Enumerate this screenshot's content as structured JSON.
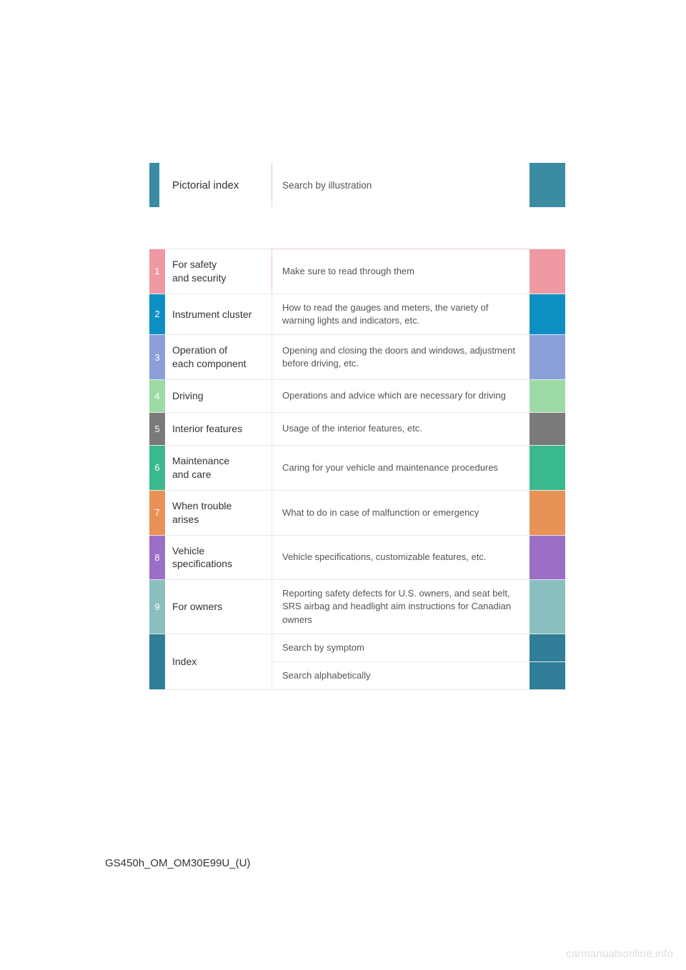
{
  "colors": {
    "pictorial_bar": "#3b8ba3",
    "pictorial_right": "#3b8ba3",
    "divider": "#e8e8e8",
    "text_title": "#333333",
    "text_desc": "#555555"
  },
  "pictorial": {
    "label": "Pictorial index",
    "description": "Search by illustration",
    "left_bar_color": "#3b8ba3",
    "right_box_color": "#3b8ba3"
  },
  "sections": [
    {
      "num": "1",
      "title": "For safety\nand security",
      "description": "Make sure to read through them",
      "num_bg": "#ef9aa3",
      "right_bg": "#ef9aa3",
      "desc_border": "#f5c0c6",
      "min_height": 54
    },
    {
      "num": "2",
      "title": "Instrument cluster",
      "description": "How to read the gauges and meters, the variety of warning lights and indicators, etc.",
      "num_bg": "#0d8fc4",
      "right_bg": "#0d8fc4",
      "desc_border": "#e8e8e8",
      "min_height": 50
    },
    {
      "num": "3",
      "title": "Operation of\neach component",
      "description": "Opening and closing the doors and windows, adjustment before driving, etc.",
      "num_bg": "#8ba0d8",
      "right_bg": "#8ba0d8",
      "desc_border": "#e8e8e8",
      "min_height": 54
    },
    {
      "num": "4",
      "title": "Driving",
      "description": "Operations and advice which are necessary for driving",
      "num_bg": "#9edaa5",
      "right_bg": "#9edaa5",
      "desc_border": "#e8e8e8",
      "min_height": 46
    },
    {
      "num": "5",
      "title": "Interior features",
      "description": "Usage of the interior features, etc.",
      "num_bg": "#7a7a7a",
      "right_bg": "#7a7a7a",
      "desc_border": "#e8e8e8",
      "min_height": 46
    },
    {
      "num": "6",
      "title": "Maintenance\nand care",
      "description": "Caring for your vehicle and maintenance procedures",
      "num_bg": "#3ab88f",
      "right_bg": "#3ab88f",
      "desc_border": "#e8e8e8",
      "min_height": 54
    },
    {
      "num": "7",
      "title": "When trouble\narises",
      "description": "What to do in case of malfunction or emergency",
      "num_bg": "#e89258",
      "right_bg": "#e89258",
      "desc_border": "#e8e8e8",
      "min_height": 54
    },
    {
      "num": "8",
      "title": "Vehicle\nspecifications",
      "description": "Vehicle specifications, customizable features, etc.",
      "num_bg": "#9b6fc5",
      "right_bg": "#9b6fc5",
      "desc_border": "#e8e8e8",
      "min_height": 54
    },
    {
      "num": "9",
      "title": "For owners",
      "description": "Reporting safety defects for U.S. owners, and seat belt, SRS airbag and headlight aim instructions for Canadian owners",
      "num_bg": "#8bbfbf",
      "right_bg": "#8bbfbf",
      "desc_border": "#e8e8e8",
      "min_height": 66
    }
  ],
  "index_row": {
    "title": "Index",
    "num_bg": "#2f7d97",
    "right_bg": "#2f7d97",
    "sub1": "Search by symptom",
    "sub2": "Search alphabetically",
    "min_height": 62
  },
  "footer": {
    "code": "GS450h_OM_OM30E99U_(U)",
    "watermark": "carmanualsonline.info"
  }
}
